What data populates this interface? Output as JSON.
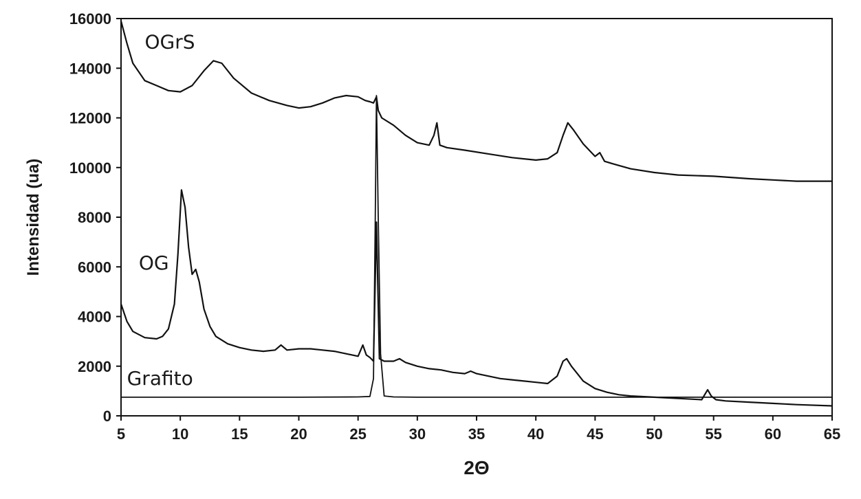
{
  "chart_data": {
    "type": "line",
    "title": "",
    "xlabel": "2Θ",
    "ylabel": "Intensidad (ua)",
    "xlim": [
      5,
      65
    ],
    "ylim": [
      0,
      16000
    ],
    "xticks": [
      "5",
      "10",
      "15",
      "20",
      "25",
      "30",
      "35",
      "40",
      "45",
      "50",
      "55",
      "60",
      "65"
    ],
    "yticks": [
      "0",
      "2000",
      "4000",
      "6000",
      "8000",
      "10000",
      "12000",
      "14000",
      "16000"
    ],
    "grid": false,
    "legend": "none",
    "line_color": "#111111",
    "series": [
      {
        "name": "OGrS",
        "x": [
          5,
          5.5,
          6,
          7,
          8,
          9,
          10,
          11,
          12,
          12.8,
          13.5,
          14.5,
          16,
          17.5,
          19,
          20,
          21,
          22,
          23,
          24,
          25,
          25.6,
          26,
          26.3,
          26.55,
          26.7,
          27,
          28,
          29,
          30,
          31,
          31.4,
          31.65,
          31.9,
          32.5,
          34,
          36,
          38,
          40,
          41,
          41.8,
          42.3,
          42.7,
          43.2,
          44,
          45,
          45.4,
          45.8,
          46.5,
          48,
          50,
          52,
          55,
          58,
          60,
          62,
          65
        ],
        "y": [
          15900,
          15000,
          14200,
          13500,
          13300,
          13100,
          13050,
          13300,
          13900,
          14300,
          14200,
          13600,
          13000,
          12700,
          12500,
          12400,
          12450,
          12600,
          12800,
          12900,
          12850,
          12700,
          12650,
          12600,
          12850,
          12300,
          12000,
          11700,
          11300,
          11000,
          10900,
          11300,
          11800,
          10900,
          10800,
          10700,
          10550,
          10400,
          10300,
          10350,
          10600,
          11300,
          11800,
          11500,
          10950,
          10450,
          10600,
          10250,
          10150,
          9950,
          9800,
          9700,
          9650,
          9550,
          9500,
          9450,
          9450
        ]
      },
      {
        "name": "OG",
        "x": [
          5,
          5.5,
          6,
          7,
          8,
          8.5,
          9,
          9.5,
          9.8,
          10.1,
          10.4,
          10.7,
          11,
          11.3,
          11.6,
          12,
          12.5,
          13,
          14,
          15,
          16,
          17,
          18,
          18.5,
          19,
          20,
          21,
          22,
          23,
          24,
          25,
          25.4,
          25.7,
          26,
          26.3,
          26.55,
          26.8,
          27.2,
          28,
          28.5,
          29,
          30,
          31,
          32,
          33,
          34,
          34.5,
          35,
          36,
          37,
          38,
          39,
          40,
          41,
          41.8,
          42.3,
          42.6,
          43,
          43.5,
          44,
          45,
          46,
          47,
          48,
          50,
          52,
          54,
          54.5,
          54.8,
          55.2,
          56,
          58,
          60,
          62,
          65
        ],
        "y": [
          4500,
          3800,
          3400,
          3150,
          3100,
          3200,
          3500,
          4500,
          6500,
          9100,
          8400,
          6800,
          5700,
          5900,
          5400,
          4300,
          3600,
          3200,
          2900,
          2750,
          2650,
          2600,
          2650,
          2850,
          2650,
          2700,
          2700,
          2650,
          2600,
          2500,
          2400,
          2850,
          2450,
          2350,
          2200,
          7800,
          2300,
          2200,
          2200,
          2300,
          2150,
          2000,
          1900,
          1850,
          1750,
          1700,
          1800,
          1700,
          1600,
          1500,
          1450,
          1400,
          1350,
          1300,
          1600,
          2200,
          2300,
          2000,
          1700,
          1400,
          1100,
          950,
          850,
          800,
          750,
          700,
          650,
          1050,
          800,
          650,
          600,
          550,
          500,
          450,
          400
        ]
      },
      {
        "name": "Grafito",
        "x": [
          5,
          10,
          15,
          20,
          25,
          26,
          26.3,
          26.45,
          26.55,
          26.7,
          26.9,
          27.2,
          28,
          30,
          35,
          40,
          45,
          50,
          55,
          60,
          65
        ],
        "y": [
          750,
          750,
          750,
          750,
          760,
          780,
          1500,
          8000,
          12900,
          8000,
          2500,
          800,
          760,
          750,
          750,
          750,
          750,
          750,
          750,
          750,
          750
        ]
      }
    ]
  }
}
